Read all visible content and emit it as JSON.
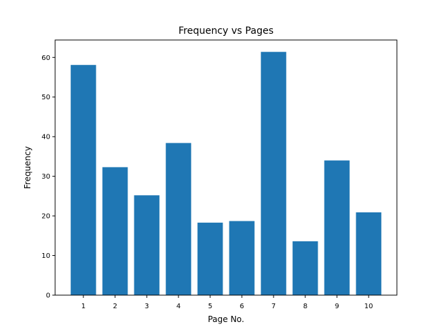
{
  "chart_data": {
    "type": "bar",
    "title": "Frequency vs Pages",
    "xlabel": "Page No.",
    "ylabel": "Frequency",
    "categories": [
      "1",
      "2",
      "3",
      "4",
      "5",
      "6",
      "7",
      "8",
      "9",
      "10"
    ],
    "values": [
      58.1,
      32.3,
      25.2,
      38.4,
      18.3,
      18.7,
      61.4,
      13.6,
      34.0,
      20.9
    ],
    "ylim": [
      0,
      64.4
    ],
    "yticks": [
      "0",
      "10",
      "20",
      "30",
      "40",
      "50",
      "60"
    ],
    "grid": false,
    "legend": "none",
    "bar_color": "#1f77b4"
  }
}
